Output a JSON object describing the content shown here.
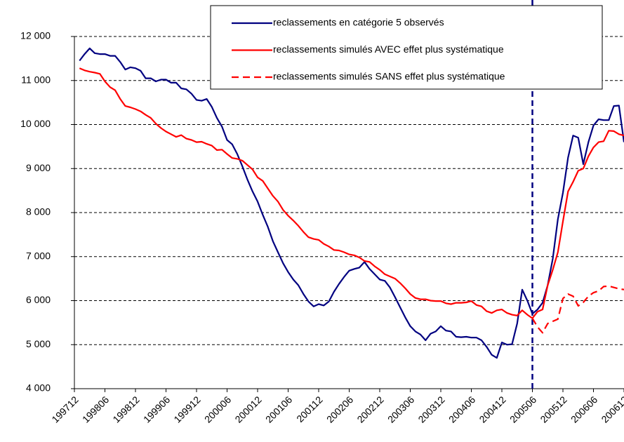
{
  "chart_data": {
    "type": "line",
    "categories": [
      "199712",
      null,
      null,
      null,
      null,
      null,
      "199806",
      null,
      null,
      null,
      null,
      null,
      "199812",
      null,
      null,
      null,
      null,
      null,
      "199906",
      null,
      null,
      null,
      null,
      null,
      "199912",
      null,
      null,
      null,
      null,
      null,
      "200006",
      null,
      null,
      null,
      null,
      null,
      "200012",
      null,
      null,
      null,
      null,
      null,
      "200106",
      null,
      null,
      null,
      null,
      null,
      "200112",
      null,
      null,
      null,
      null,
      null,
      "200206",
      null,
      null,
      null,
      null,
      null,
      "200212",
      null,
      null,
      null,
      null,
      null,
      "200306",
      null,
      null,
      null,
      null,
      null,
      "200312",
      null,
      null,
      null,
      null,
      null,
      "200406",
      null,
      null,
      null,
      null,
      null,
      "200412",
      null,
      null,
      null,
      null,
      null,
      "200506",
      null,
      null,
      null,
      null,
      null,
      "200512",
      null,
      null,
      null,
      null,
      null,
      "200606",
      null,
      null,
      null,
      null,
      null,
      "200612"
    ],
    "series": [
      {
        "name": "reclassements en catégorie 5 observés",
        "color": "#000080",
        "dash": false,
        "values": [
          null,
          11450,
          11600,
          11730,
          11620,
          11600,
          11600,
          11560,
          11560,
          11420,
          11250,
          11300,
          11280,
          11220,
          11050,
          11050,
          10980,
          11020,
          11020,
          10950,
          10950,
          10820,
          10800,
          10700,
          10560,
          10540,
          10580,
          10400,
          10150,
          9950,
          9650,
          9550,
          9330,
          9050,
          8750,
          8480,
          8250,
          7950,
          7680,
          7350,
          7100,
          6850,
          6650,
          6480,
          6350,
          6150,
          5980,
          5870,
          5920,
          5890,
          5980,
          6200,
          6380,
          6540,
          6680,
          6720,
          6750,
          6880,
          6720,
          6600,
          6480,
          6450,
          6300,
          6080,
          5850,
          5620,
          5420,
          5300,
          5230,
          5100,
          5250,
          5300,
          5420,
          5320,
          5300,
          5180,
          5170,
          5180,
          5160,
          5160,
          5100,
          4950,
          4770,
          4700,
          5050,
          5000,
          5010,
          5480,
          6250,
          6000,
          5700,
          5800,
          5950,
          6350,
          6950,
          7850,
          8450,
          9250,
          9750,
          9700,
          9100,
          9600,
          9980,
          10120,
          10100,
          10100,
          10420,
          10430,
          9600
        ]
      },
      {
        "name": "reclassements simulés AVEC effet plus systématique",
        "color": "#ff0000",
        "dash": false,
        "values": [
          null,
          11280,
          11230,
          11200,
          11180,
          11150,
          10980,
          10850,
          10780,
          10580,
          10420,
          10390,
          10350,
          10300,
          10220,
          10150,
          10020,
          9920,
          9840,
          9780,
          9720,
          9760,
          9680,
          9650,
          9600,
          9610,
          9560,
          9520,
          9420,
          9430,
          9330,
          9240,
          9220,
          9180,
          9080,
          8980,
          8800,
          8720,
          8550,
          8380,
          8250,
          8060,
          7930,
          7820,
          7700,
          7560,
          7440,
          7400,
          7380,
          7290,
          7230,
          7150,
          7140,
          7100,
          7050,
          7030,
          6980,
          6900,
          6880,
          6780,
          6700,
          6600,
          6550,
          6500,
          6400,
          6280,
          6150,
          6060,
          6030,
          6030,
          6000,
          5990,
          5990,
          5940,
          5920,
          5950,
          5950,
          5960,
          5990,
          5900,
          5870,
          5760,
          5720,
          5780,
          5800,
          5720,
          5680,
          5660,
          5780,
          5680,
          5600,
          5750,
          5800,
          6350,
          6700,
          7100,
          7800,
          8480,
          8700,
          8950,
          9000,
          9280,
          9480,
          9600,
          9620,
          9860,
          9850,
          9780,
          9750
        ]
      },
      {
        "name": "reclassements simulés SANS effet plus systématique",
        "color": "#ff0000",
        "dash": true,
        "values": [
          null,
          null,
          null,
          null,
          null,
          null,
          null,
          null,
          null,
          null,
          null,
          null,
          null,
          null,
          null,
          null,
          null,
          null,
          null,
          null,
          null,
          null,
          null,
          null,
          null,
          null,
          null,
          null,
          null,
          null,
          null,
          null,
          null,
          null,
          null,
          null,
          null,
          null,
          null,
          null,
          null,
          null,
          null,
          null,
          null,
          null,
          null,
          null,
          null,
          null,
          null,
          null,
          null,
          null,
          null,
          null,
          null,
          null,
          null,
          null,
          null,
          null,
          null,
          null,
          null,
          null,
          null,
          null,
          null,
          null,
          null,
          null,
          null,
          null,
          null,
          null,
          null,
          null,
          null,
          null,
          null,
          null,
          null,
          null,
          null,
          null,
          null,
          null,
          null,
          null,
          5600,
          5400,
          5270,
          5480,
          5530,
          5580,
          6050,
          6150,
          6100,
          5880,
          5960,
          6100,
          6180,
          6220,
          6320,
          6330,
          6300,
          6270,
          6250
        ]
      }
    ],
    "ylim": [
      4000,
      12000
    ],
    "yticks": [
      {
        "value": 4000,
        "label": "4 000"
      },
      {
        "value": 5000,
        "label": "5 000"
      },
      {
        "value": 6000,
        "label": "6 000"
      },
      {
        "value": 7000,
        "label": "7 000"
      },
      {
        "value": 8000,
        "label": "8 000"
      },
      {
        "value": 9000,
        "label": "9 000"
      },
      {
        "value": 10000,
        "label": "10 000"
      },
      {
        "value": 11000,
        "label": "11 000"
      },
      {
        "value": 12000,
        "label": "12 000"
      }
    ],
    "grid": true,
    "vertical_line": "200506",
    "vertical_line_color": "#000080",
    "legend": "top-right"
  }
}
